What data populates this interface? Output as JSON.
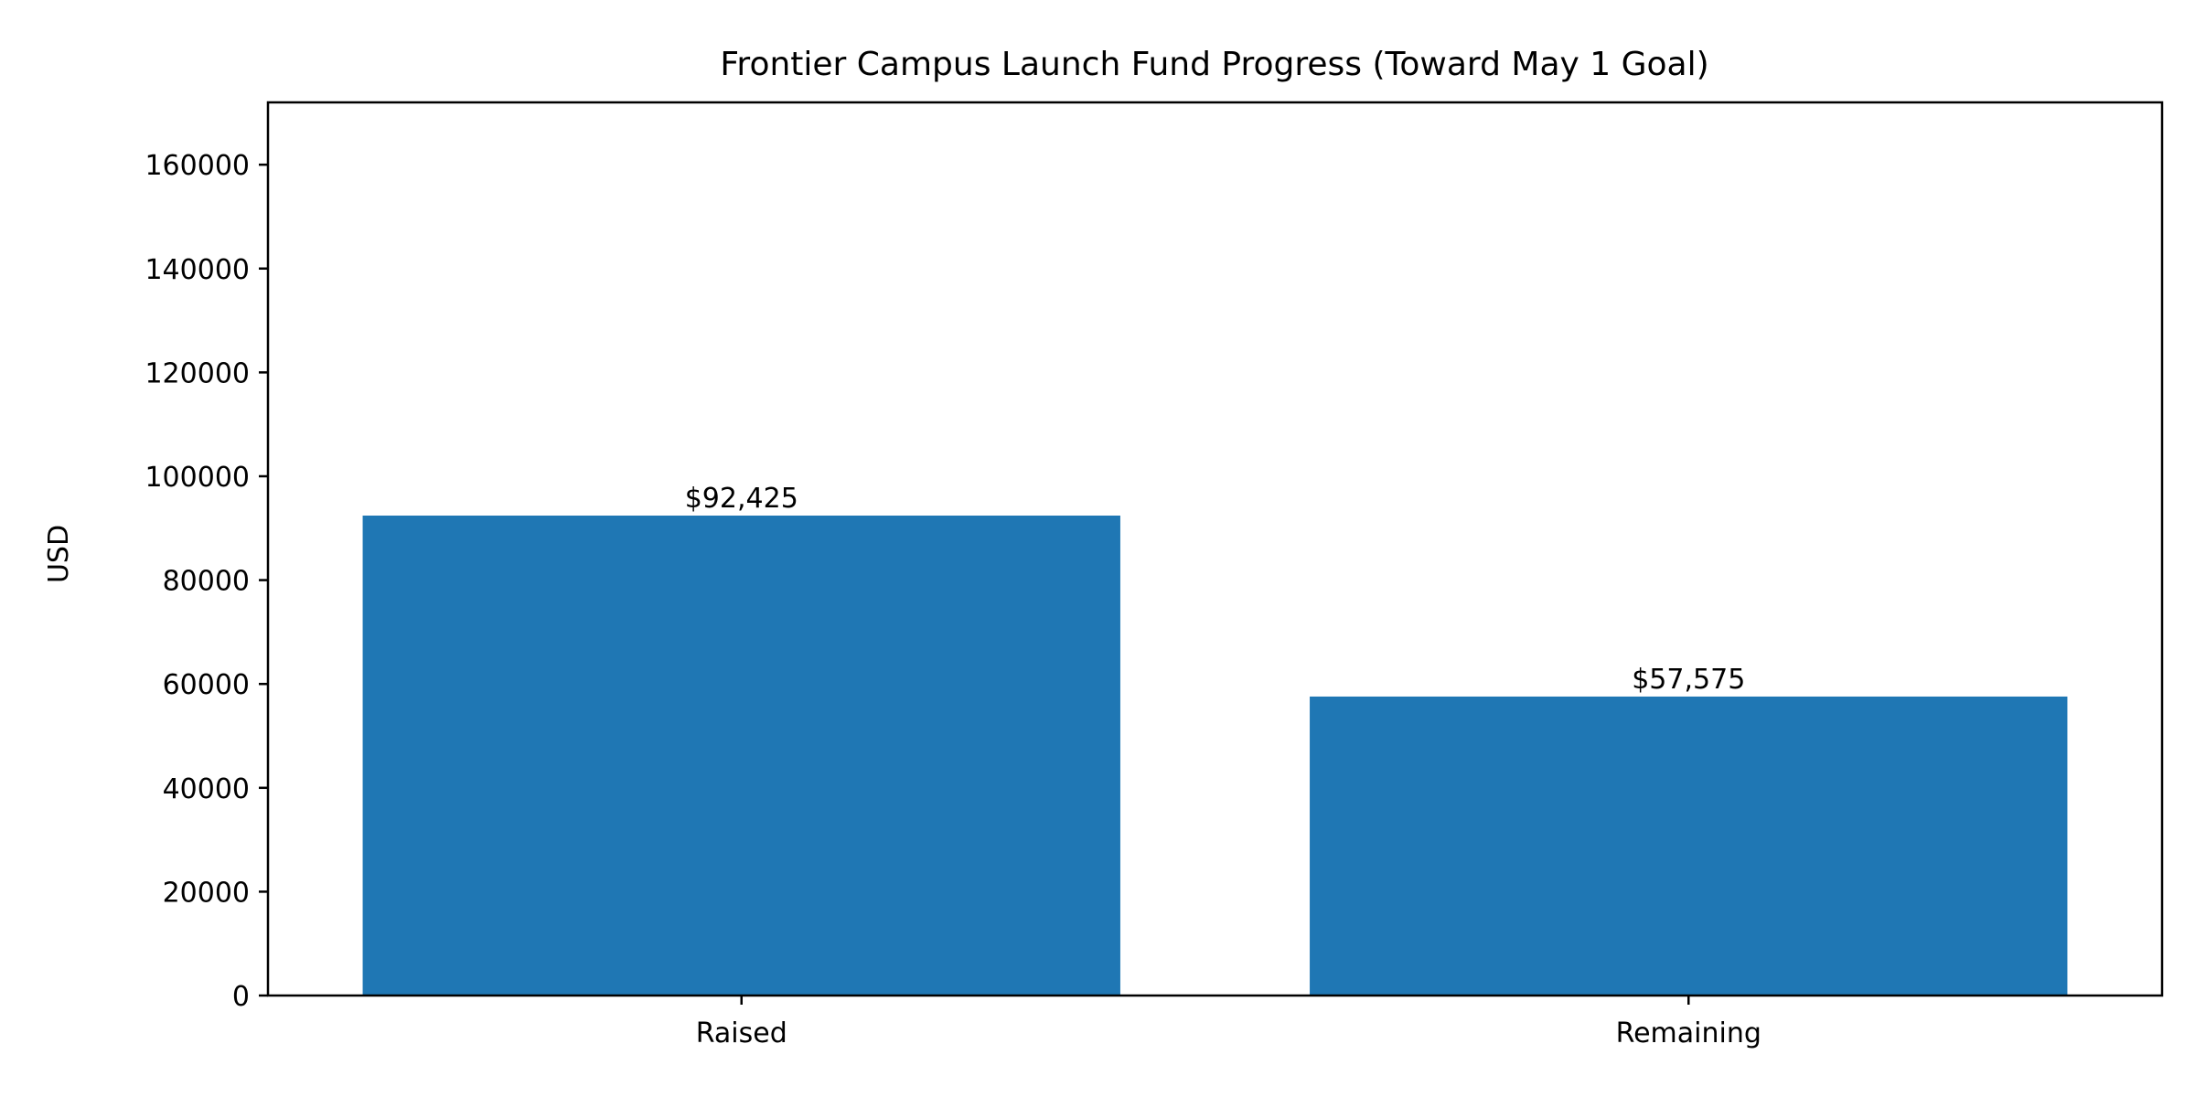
{
  "chart_data": {
    "type": "bar",
    "title": "Frontier Campus Launch Fund Progress (Toward May 1 Goal)",
    "xlabel": "",
    "ylabel": "USD",
    "categories": [
      "Raised",
      "Remaining"
    ],
    "values": [
      92425,
      57575
    ],
    "value_labels": [
      "$92,425",
      "$57,575"
    ],
    "ylim": [
      0,
      172000
    ],
    "yticks": [
      0,
      20000,
      40000,
      60000,
      80000,
      100000,
      120000,
      140000,
      160000
    ],
    "ytick_labels": [
      "0",
      "20000",
      "40000",
      "60000",
      "80000",
      "100000",
      "120000",
      "140000",
      "160000"
    ],
    "grid": false,
    "bar_color": "#1f77b4"
  }
}
